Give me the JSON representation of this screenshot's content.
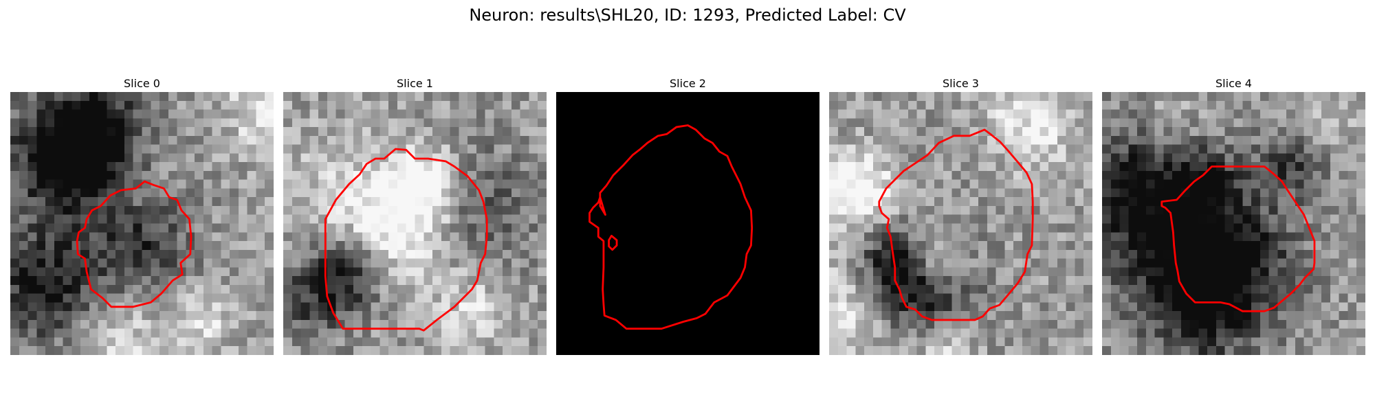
{
  "figure": {
    "title": "Neuron: results\\SHL20, ID: 1293, Predicted Label: CV"
  },
  "panels": [
    {
      "label": "Slice 0",
      "kind": "noisy-grayscale",
      "seed": 11,
      "darkCenter": true,
      "contours": [
        [
          [
            10.3,
            13.0
          ],
          [
            11.4,
            11.8
          ],
          [
            12.6,
            11.2
          ],
          [
            14.3,
            11.0
          ],
          [
            15.3,
            10.2
          ],
          [
            16.3,
            10.6
          ],
          [
            17.5,
            11.0
          ],
          [
            18.1,
            12.0
          ],
          [
            19.0,
            12.3
          ],
          [
            19.5,
            13.5
          ],
          [
            20.4,
            14.5
          ],
          [
            20.6,
            16.5
          ],
          [
            20.5,
            18.5
          ],
          [
            19.4,
            19.5
          ],
          [
            19.6,
            20.8
          ],
          [
            18.5,
            21.5
          ],
          [
            17.2,
            23.0
          ],
          [
            16.0,
            24.0
          ],
          [
            14.0,
            24.5
          ],
          [
            11.5,
            24.5
          ],
          [
            10.5,
            23.5
          ],
          [
            9.2,
            22.5
          ],
          [
            8.7,
            20.5
          ],
          [
            8.5,
            19.0
          ],
          [
            7.7,
            18.5
          ],
          [
            7.6,
            17.0
          ],
          [
            7.8,
            16.0
          ],
          [
            8.5,
            15.5
          ],
          [
            8.7,
            14.5
          ],
          [
            9.3,
            13.5
          ]
        ]
      ]
    },
    {
      "label": "Slice 1",
      "kind": "noisy-grayscale",
      "seed": 23,
      "darkCenter": false,
      "contours": [
        [
          [
            4.8,
            14.5
          ],
          [
            6.0,
            12.3
          ],
          [
            7.5,
            10.5
          ],
          [
            8.7,
            9.4
          ],
          [
            9.5,
            8.2
          ],
          [
            10.5,
            7.6
          ],
          [
            11.5,
            7.6
          ],
          [
            12.8,
            6.5
          ],
          [
            14.0,
            6.6
          ],
          [
            15.0,
            7.6
          ],
          [
            16.5,
            7.6
          ],
          [
            18.5,
            7.9
          ],
          [
            19.5,
            8.5
          ],
          [
            21.0,
            9.6
          ],
          [
            22.3,
            11.2
          ],
          [
            22.8,
            12.5
          ],
          [
            23.2,
            14.5
          ],
          [
            23.2,
            16.5
          ],
          [
            23.0,
            18.5
          ],
          [
            22.5,
            19.5
          ],
          [
            22.1,
            21.5
          ],
          [
            21.5,
            22.5
          ],
          [
            20.5,
            23.5
          ],
          [
            19.5,
            24.5
          ],
          [
            17.5,
            26.0
          ],
          [
            16.0,
            27.2
          ],
          [
            15.5,
            27.0
          ],
          [
            14.5,
            27.0
          ],
          [
            13.0,
            27.0
          ],
          [
            11.5,
            27.0
          ],
          [
            9.0,
            27.0
          ],
          [
            6.8,
            27.0
          ],
          [
            5.7,
            25.2
          ],
          [
            5.0,
            23.3
          ],
          [
            4.8,
            21.0
          ],
          [
            4.8,
            18.0
          ]
        ]
      ]
    },
    {
      "label": "Slice 2",
      "kind": "black",
      "seed": 0,
      "darkCenter": false,
      "contours": [
        [
          [
            5.6,
            14.0
          ],
          [
            5.0,
            13.0
          ],
          [
            5.0,
            11.5
          ],
          [
            5.7,
            10.7
          ],
          [
            6.5,
            9.5
          ],
          [
            7.7,
            8.3
          ],
          [
            8.7,
            7.2
          ],
          [
            9.6,
            6.5
          ],
          [
            10.4,
            5.8
          ],
          [
            11.6,
            5.0
          ],
          [
            12.6,
            4.8
          ],
          [
            13.7,
            4.0
          ],
          [
            15.0,
            3.8
          ],
          [
            15.9,
            4.3
          ],
          [
            16.9,
            5.3
          ],
          [
            17.8,
            5.8
          ],
          [
            18.6,
            6.8
          ],
          [
            19.5,
            7.3
          ],
          [
            20.0,
            8.5
          ],
          [
            20.5,
            9.5
          ],
          [
            21.0,
            10.5
          ],
          [
            21.5,
            12.0
          ],
          [
            22.2,
            13.5
          ],
          [
            22.3,
            15.5
          ],
          [
            22.2,
            17.5
          ],
          [
            21.7,
            18.5
          ],
          [
            21.5,
            20.0
          ],
          [
            21.0,
            21.2
          ],
          [
            20.4,
            22.0
          ],
          [
            19.5,
            23.2
          ],
          [
            18.0,
            24.0
          ],
          [
            17.0,
            25.3
          ],
          [
            16.0,
            25.8
          ],
          [
            14.5,
            26.2
          ],
          [
            12.0,
            27.0
          ],
          [
            10.0,
            27.0
          ],
          [
            8.0,
            27.0
          ],
          [
            6.8,
            26.0
          ],
          [
            5.5,
            25.5
          ],
          [
            5.4,
            24.2
          ],
          [
            5.3,
            22.5
          ],
          [
            5.4,
            20.0
          ],
          [
            5.4,
            17.0
          ],
          [
            4.8,
            16.5
          ],
          [
            4.8,
            15.5
          ],
          [
            3.8,
            14.8
          ],
          [
            3.8,
            13.8
          ],
          [
            4.2,
            13.2
          ],
          [
            4.8,
            12.6
          ],
          [
            5.0,
            12.0
          ]
        ],
        [
          [
            6.3,
            16.4
          ],
          [
            6.9,
            16.9
          ],
          [
            6.9,
            17.5
          ],
          [
            6.4,
            18.0
          ],
          [
            6.0,
            17.6
          ],
          [
            6.0,
            16.9
          ]
        ]
      ]
    },
    {
      "label": "Slice 3",
      "kind": "noisy-grayscale",
      "seed": 37,
      "darkCenter": false,
      "contours": [
        [
          [
            5.7,
            12.5
          ],
          [
            6.5,
            11.0
          ],
          [
            7.5,
            10.0
          ],
          [
            8.5,
            9.0
          ],
          [
            10.0,
            8.0
          ],
          [
            11.2,
            7.2
          ],
          [
            12.5,
            5.8
          ],
          [
            14.2,
            5.0
          ],
          [
            16.0,
            5.0
          ],
          [
            17.7,
            4.3
          ],
          [
            18.5,
            4.9
          ],
          [
            19.5,
            5.7
          ],
          [
            20.4,
            6.7
          ],
          [
            21.5,
            8.0
          ],
          [
            22.5,
            9.2
          ],
          [
            23.1,
            10.5
          ],
          [
            23.2,
            12.5
          ],
          [
            23.2,
            14.5
          ],
          [
            23.1,
            17.5
          ],
          [
            22.6,
            18.5
          ],
          [
            22.3,
            20.5
          ],
          [
            21.5,
            21.8
          ],
          [
            20.5,
            23.0
          ],
          [
            19.4,
            24.3
          ],
          [
            18.3,
            24.7
          ],
          [
            17.5,
            25.6
          ],
          [
            16.6,
            26.0
          ],
          [
            15.0,
            26.0
          ],
          [
            13.0,
            26.0
          ],
          [
            11.7,
            26.0
          ],
          [
            10.6,
            25.6
          ],
          [
            9.8,
            24.8
          ],
          [
            8.8,
            24.5
          ],
          [
            8.3,
            23.5
          ],
          [
            8.0,
            22.5
          ],
          [
            7.5,
            21.5
          ],
          [
            7.5,
            20.0
          ],
          [
            7.2,
            18.0
          ],
          [
            7.0,
            16.5
          ],
          [
            6.6,
            15.5
          ],
          [
            6.8,
            14.5
          ],
          [
            6.0,
            13.8
          ],
          [
            5.7,
            13.0
          ]
        ]
      ]
    },
    {
      "label": "Slice 4",
      "kind": "noisy-grayscale",
      "seed": 53,
      "darkCenter": false,
      "contours": [
        [
          [
            6.8,
            12.5
          ],
          [
            8.5,
            12.3
          ],
          [
            9.5,
            11.2
          ],
          [
            10.5,
            10.2
          ],
          [
            11.5,
            9.5
          ],
          [
            12.5,
            8.5
          ],
          [
            13.5,
            8.5
          ],
          [
            15.0,
            8.5
          ],
          [
            17.0,
            8.5
          ],
          [
            18.5,
            8.5
          ],
          [
            19.5,
            9.3
          ],
          [
            20.5,
            10.2
          ],
          [
            21.0,
            11.0
          ],
          [
            23.0,
            14.0
          ],
          [
            24.2,
            17.0
          ],
          [
            24.2,
            19.5
          ],
          [
            24.1,
            20.2
          ],
          [
            23.1,
            21.2
          ],
          [
            22.5,
            22.0
          ],
          [
            21.5,
            23.0
          ],
          [
            20.3,
            24.0
          ],
          [
            19.6,
            24.6
          ],
          [
            18.5,
            25.0
          ],
          [
            17.0,
            25.0
          ],
          [
            16.0,
            25.0
          ],
          [
            14.5,
            24.2
          ],
          [
            13.5,
            24.0
          ],
          [
            12.0,
            24.0
          ],
          [
            10.6,
            24.0
          ],
          [
            9.6,
            23.0
          ],
          [
            8.8,
            21.6
          ],
          [
            8.6,
            20.4
          ],
          [
            8.4,
            19.5
          ],
          [
            8.2,
            17.5
          ],
          [
            8.1,
            16.0
          ],
          [
            7.8,
            13.8
          ],
          [
            7.2,
            13.2
          ],
          [
            6.8,
            13.0
          ]
        ]
      ]
    }
  ],
  "colors": {
    "contour": "#ff0000",
    "background": "#000000"
  }
}
